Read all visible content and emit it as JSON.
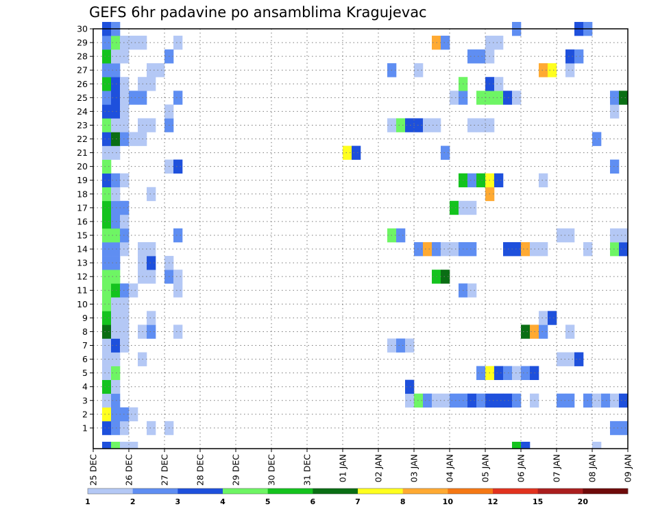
{
  "chart_data": {
    "type": "heatmap",
    "title": "GEFS 6hr padavine po ansamblima Kragujevac",
    "xlabel": "",
    "ylabel": "",
    "y_ticks": [
      "1",
      "2",
      "3",
      "4",
      "5",
      "6",
      "7",
      "8",
      "9",
      "10",
      "11",
      "12",
      "13",
      "14",
      "15",
      "16",
      "17",
      "18",
      "19",
      "20",
      "21",
      "22",
      "23",
      "24",
      "25",
      "26",
      "27",
      "28",
      "29",
      "30"
    ],
    "x_ticks": [
      "25 DEC",
      "26 DEC",
      "27 DEC",
      "28 DEC",
      "29 DEC",
      "30 DEC",
      "31 DEC",
      "01 JAN",
      "02 JAN",
      "03 JAN",
      "04 JAN",
      "05 JAN",
      "06 JAN",
      "07 JAN",
      "08 JAN",
      "09 JAN"
    ],
    "xlim_steps": [
      0,
      60
    ],
    "ylim_members": [
      0,
      30
    ],
    "grid": true,
    "legend_position": "bottom",
    "colorbar": {
      "ticks": [
        "1",
        "2",
        "3",
        "4",
        "5",
        "6",
        "7",
        "8",
        "10",
        "12",
        "15",
        "20"
      ],
      "colors": [
        "#b4c8f5",
        "#5f8ef2",
        "#1e50dc",
        "#6ef564",
        "#14c31e",
        "#0a6e14",
        "#ffff1e",
        "#ffaa32",
        "#f57814",
        "#e1321e",
        "#aa1e1e",
        "#6e0a0a"
      ]
    },
    "series_note": "each cell: [member, 6h step index from 25 DEC 00z, color class index]",
    "cells": [
      [
        1,
        1,
        2
      ],
      [
        1,
        2,
        1
      ],
      [
        1,
        3,
        0
      ],
      [
        1,
        6,
        0
      ],
      [
        1,
        8,
        0
      ],
      [
        1,
        58,
        1
      ],
      [
        1,
        59,
        1
      ],
      [
        2,
        1,
        6
      ],
      [
        2,
        2,
        1
      ],
      [
        2,
        3,
        1
      ],
      [
        2,
        4,
        0
      ],
      [
        3,
        1,
        0
      ],
      [
        3,
        2,
        1
      ],
      [
        3,
        35,
        0
      ],
      [
        3,
        36,
        3
      ],
      [
        3,
        37,
        1
      ],
      [
        3,
        38,
        0
      ],
      [
        3,
        39,
        0
      ],
      [
        3,
        40,
        1
      ],
      [
        3,
        41,
        1
      ],
      [
        3,
        42,
        2
      ],
      [
        3,
        43,
        1
      ],
      [
        3,
        44,
        2
      ],
      [
        3,
        45,
        2
      ],
      [
        3,
        46,
        2
      ],
      [
        3,
        47,
        1
      ],
      [
        3,
        49,
        0
      ],
      [
        3,
        52,
        1
      ],
      [
        3,
        53,
        1
      ],
      [
        3,
        55,
        1
      ],
      [
        3,
        56,
        0
      ],
      [
        3,
        57,
        1
      ],
      [
        3,
        58,
        0
      ],
      [
        3,
        59,
        2
      ],
      [
        4,
        1,
        4
      ],
      [
        4,
        2,
        0
      ],
      [
        4,
        35,
        2
      ],
      [
        5,
        1,
        0
      ],
      [
        5,
        2,
        3
      ],
      [
        5,
        43,
        1
      ],
      [
        5,
        44,
        6
      ],
      [
        5,
        45,
        2
      ],
      [
        5,
        46,
        1
      ],
      [
        5,
        47,
        0
      ],
      [
        5,
        48,
        1
      ],
      [
        5,
        49,
        2
      ],
      [
        6,
        1,
        0
      ],
      [
        6,
        2,
        0
      ],
      [
        6,
        5,
        0
      ],
      [
        6,
        52,
        0
      ],
      [
        6,
        53,
        0
      ],
      [
        6,
        54,
        2
      ],
      [
        7,
        1,
        0
      ],
      [
        7,
        2,
        2
      ],
      [
        7,
        3,
        0
      ],
      [
        7,
        33,
        0
      ],
      [
        7,
        34,
        1
      ],
      [
        7,
        35,
        0
      ],
      [
        8,
        1,
        5
      ],
      [
        8,
        2,
        0
      ],
      [
        8,
        3,
        0
      ],
      [
        8,
        5,
        0
      ],
      [
        8,
        6,
        1
      ],
      [
        8,
        9,
        0
      ],
      [
        8,
        48,
        5
      ],
      [
        8,
        49,
        7
      ],
      [
        8,
        50,
        1
      ],
      [
        8,
        53,
        0
      ],
      [
        9,
        1,
        4
      ],
      [
        9,
        2,
        0
      ],
      [
        9,
        3,
        0
      ],
      [
        9,
        6,
        0
      ],
      [
        9,
        50,
        0
      ],
      [
        9,
        51,
        2
      ],
      [
        10,
        1,
        3
      ],
      [
        10,
        2,
        0
      ],
      [
        10,
        3,
        0
      ],
      [
        11,
        1,
        3
      ],
      [
        11,
        2,
        4
      ],
      [
        11,
        3,
        1
      ],
      [
        11,
        4,
        0
      ],
      [
        11,
        9,
        0
      ],
      [
        11,
        41,
        1
      ],
      [
        11,
        42,
        0
      ],
      [
        12,
        1,
        3
      ],
      [
        12,
        2,
        3
      ],
      [
        12,
        5,
        0
      ],
      [
        12,
        6,
        0
      ],
      [
        12,
        8,
        1
      ],
      [
        12,
        9,
        0
      ],
      [
        12,
        38,
        4
      ],
      [
        12,
        39,
        5
      ],
      [
        13,
        1,
        1
      ],
      [
        13,
        2,
        1
      ],
      [
        13,
        5,
        0
      ],
      [
        13,
        6,
        2
      ],
      [
        13,
        8,
        0
      ],
      [
        14,
        1,
        1
      ],
      [
        14,
        2,
        1
      ],
      [
        14,
        3,
        0
      ],
      [
        14,
        5,
        0
      ],
      [
        14,
        6,
        0
      ],
      [
        14,
        36,
        1
      ],
      [
        14,
        37,
        7
      ],
      [
        14,
        38,
        1
      ],
      [
        14,
        39,
        0
      ],
      [
        14,
        40,
        0
      ],
      [
        14,
        41,
        1
      ],
      [
        14,
        42,
        1
      ],
      [
        14,
        46,
        2
      ],
      [
        14,
        47,
        2
      ],
      [
        14,
        48,
        7
      ],
      [
        14,
        49,
        0
      ],
      [
        14,
        50,
        0
      ],
      [
        14,
        55,
        0
      ],
      [
        14,
        58,
        3
      ],
      [
        14,
        59,
        2
      ],
      [
        15,
        1,
        3
      ],
      [
        15,
        2,
        3
      ],
      [
        15,
        3,
        1
      ],
      [
        15,
        9,
        1
      ],
      [
        15,
        33,
        3
      ],
      [
        15,
        34,
        1
      ],
      [
        15,
        52,
        0
      ],
      [
        15,
        53,
        0
      ],
      [
        15,
        58,
        0
      ],
      [
        15,
        59,
        0
      ],
      [
        16,
        1,
        4
      ],
      [
        16,
        2,
        1
      ],
      [
        16,
        3,
        0
      ],
      [
        17,
        1,
        4
      ],
      [
        17,
        2,
        1
      ],
      [
        17,
        3,
        1
      ],
      [
        17,
        40,
        4
      ],
      [
        17,
        41,
        0
      ],
      [
        17,
        42,
        0
      ],
      [
        18,
        1,
        3
      ],
      [
        18,
        2,
        0
      ],
      [
        18,
        6,
        0
      ],
      [
        18,
        44,
        7
      ],
      [
        19,
        1,
        2
      ],
      [
        19,
        2,
        1
      ],
      [
        19,
        3,
        0
      ],
      [
        19,
        41,
        4
      ],
      [
        19,
        42,
        1
      ],
      [
        19,
        43,
        4
      ],
      [
        19,
        44,
        6
      ],
      [
        19,
        45,
        2
      ],
      [
        19,
        50,
        0
      ],
      [
        20,
        1,
        3
      ],
      [
        20,
        8,
        0
      ],
      [
        20,
        9,
        2
      ],
      [
        20,
        58,
        1
      ],
      [
        21,
        1,
        0
      ],
      [
        21,
        2,
        0
      ],
      [
        21,
        28,
        6
      ],
      [
        21,
        29,
        2
      ],
      [
        21,
        39,
        1
      ],
      [
        22,
        1,
        2
      ],
      [
        22,
        2,
        5
      ],
      [
        22,
        3,
        1
      ],
      [
        22,
        4,
        0
      ],
      [
        22,
        5,
        0
      ],
      [
        22,
        56,
        1
      ],
      [
        23,
        1,
        3
      ],
      [
        23,
        2,
        0
      ],
      [
        23,
        3,
        0
      ],
      [
        23,
        5,
        0
      ],
      [
        23,
        6,
        0
      ],
      [
        23,
        8,
        1
      ],
      [
        23,
        33,
        0
      ],
      [
        23,
        34,
        3
      ],
      [
        23,
        35,
        2
      ],
      [
        23,
        36,
        2
      ],
      [
        23,
        37,
        0
      ],
      [
        23,
        38,
        0
      ],
      [
        23,
        42,
        0
      ],
      [
        23,
        43,
        0
      ],
      [
        23,
        44,
        0
      ],
      [
        24,
        1,
        2
      ],
      [
        24,
        2,
        2
      ],
      [
        24,
        3,
        0
      ],
      [
        24,
        8,
        0
      ],
      [
        24,
        58,
        0
      ],
      [
        25,
        1,
        1
      ],
      [
        25,
        2,
        2
      ],
      [
        25,
        3,
        0
      ],
      [
        25,
        4,
        1
      ],
      [
        25,
        5,
        1
      ],
      [
        25,
        9,
        1
      ],
      [
        25,
        40,
        0
      ],
      [
        25,
        41,
        1
      ],
      [
        25,
        43,
        3
      ],
      [
        25,
        44,
        3
      ],
      [
        25,
        45,
        3
      ],
      [
        25,
        46,
        2
      ],
      [
        25,
        47,
        0
      ],
      [
        25,
        58,
        1
      ],
      [
        25,
        59,
        5
      ],
      [
        26,
        1,
        4
      ],
      [
        26,
        2,
        2
      ],
      [
        26,
        3,
        0
      ],
      [
        26,
        5,
        0
      ],
      [
        26,
        6,
        0
      ],
      [
        26,
        41,
        3
      ],
      [
        26,
        44,
        2
      ],
      [
        26,
        45,
        0
      ],
      [
        27,
        1,
        1
      ],
      [
        27,
        2,
        1
      ],
      [
        27,
        6,
        0
      ],
      [
        27,
        7,
        0
      ],
      [
        27,
        33,
        1
      ],
      [
        27,
        36,
        0
      ],
      [
        27,
        50,
        7
      ],
      [
        27,
        51,
        6
      ],
      [
        27,
        53,
        0
      ],
      [
        28,
        1,
        4
      ],
      [
        28,
        2,
        0
      ],
      [
        28,
        3,
        0
      ],
      [
        28,
        8,
        1
      ],
      [
        28,
        42,
        1
      ],
      [
        28,
        43,
        1
      ],
      [
        28,
        44,
        0
      ],
      [
        28,
        53,
        2
      ],
      [
        28,
        54,
        1
      ],
      [
        29,
        1,
        1
      ],
      [
        29,
        2,
        3
      ],
      [
        29,
        3,
        0
      ],
      [
        29,
        4,
        0
      ],
      [
        29,
        5,
        0
      ],
      [
        29,
        9,
        0
      ],
      [
        29,
        38,
        7
      ],
      [
        29,
        39,
        1
      ],
      [
        29,
        44,
        0
      ],
      [
        29,
        45,
        0
      ],
      [
        30,
        1,
        2
      ],
      [
        30,
        2,
        1
      ],
      [
        30,
        47,
        1
      ],
      [
        30,
        54,
        2
      ],
      [
        30,
        55,
        1
      ],
      [
        0,
        1,
        2
      ],
      [
        0,
        2,
        3
      ],
      [
        0,
        3,
        0
      ],
      [
        0,
        4,
        0
      ],
      [
        0,
        47,
        4
      ],
      [
        0,
        48,
        2
      ],
      [
        0,
        56,
        0
      ]
    ]
  }
}
